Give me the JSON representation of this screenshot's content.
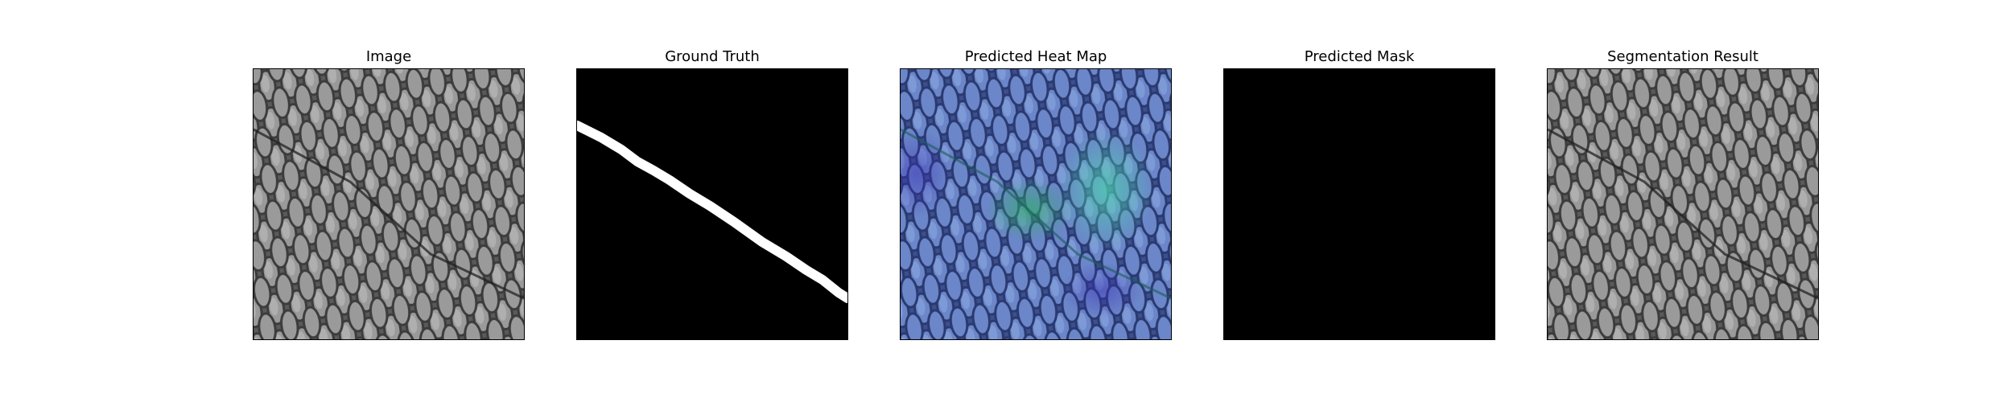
{
  "figure": {
    "panels": [
      {
        "id": "image",
        "title": "Image",
        "icon": "grayscale-mesh-texture-image"
      },
      {
        "id": "ground_truth",
        "title": "Ground Truth",
        "icon": "binary-crack-mask-image"
      },
      {
        "id": "heat_map",
        "title": "Predicted Heat Map",
        "icon": "viridis-heatmap-overlay-image"
      },
      {
        "id": "pred_mask",
        "title": "Predicted Mask",
        "icon": "empty-black-mask-image"
      },
      {
        "id": "segmentation",
        "title": "Segmentation Result",
        "icon": "grayscale-mesh-segmentation-image"
      }
    ],
    "colors": {
      "background": "#ffffff",
      "mask_background": "#000000",
      "mask_foreground": "#ffffff",
      "heat_low": "#3b4cc0",
      "heat_high": "#4fd1b0"
    }
  }
}
